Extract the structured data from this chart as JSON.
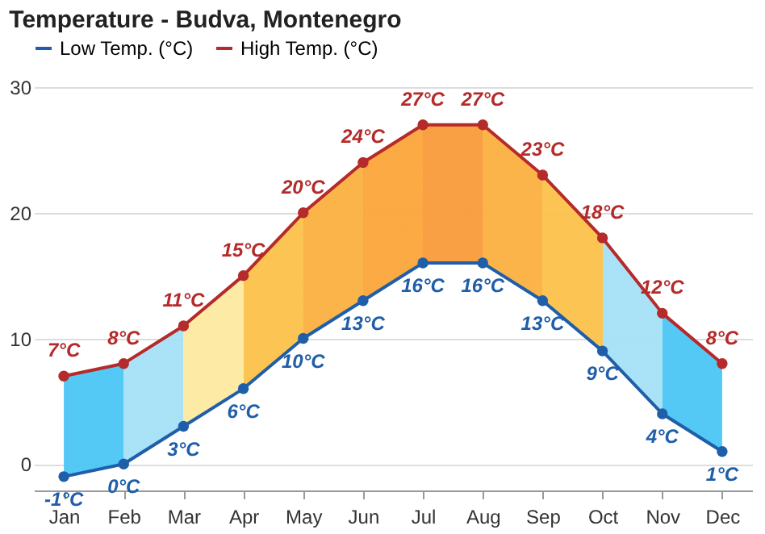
{
  "chart_data": {
    "type": "line",
    "title": "Temperature - Budva, Montenegro",
    "categories": [
      "Jan",
      "Feb",
      "Mar",
      "Apr",
      "May",
      "Jun",
      "Jul",
      "Aug",
      "Sep",
      "Oct",
      "Nov",
      "Dec"
    ],
    "series": [
      {
        "name": "Low Temp. (°C)",
        "color": "#1f5ea8",
        "values": [
          -1,
          0,
          3,
          6,
          10,
          13,
          16,
          16,
          13,
          9,
          4,
          1
        ],
        "value_labels": [
          "-1°C",
          "0°C",
          "3°C",
          "6°C",
          "10°C",
          "13°C",
          "16°C",
          "16°C",
          "13°C",
          "9°C",
          "4°C",
          "1°C"
        ]
      },
      {
        "name": "High Temp. (°C)",
        "color": "#b52a2a",
        "values": [
          7,
          8,
          11,
          15,
          20,
          24,
          27,
          27,
          23,
          18,
          12,
          8
        ],
        "value_labels": [
          "7°C",
          "8°C",
          "11°C",
          "15°C",
          "20°C",
          "24°C",
          "27°C",
          "27°C",
          "23°C",
          "18°C",
          "12°C",
          "8°C"
        ],
        "lower": [
          -1,
          0,
          3,
          6,
          10,
          13,
          16,
          16,
          13,
          9,
          4,
          1
        ],
        "upper": [
          7,
          8,
          11,
          15,
          20,
          24,
          27,
          27,
          23,
          18,
          12,
          8
        ],
        "colors": [
          "#4cc6f5",
          "#a5e0f7",
          "#fde9a0",
          "#fcc24a",
          "#fbb040",
          "#fba53a",
          "#f99a3a",
          "#fbb040",
          "#fcc24a",
          "#a5e0f7",
          "#4cc6f5",
          "#4cc6f5"
        ]
      }
    ],
    "ylim": [
      -2.1,
      30
    ],
    "yticks": [
      0,
      10,
      20,
      30
    ],
    "grid": "y",
    "legend": "top",
    "marker": "circle",
    "line_style": "solid"
  }
}
